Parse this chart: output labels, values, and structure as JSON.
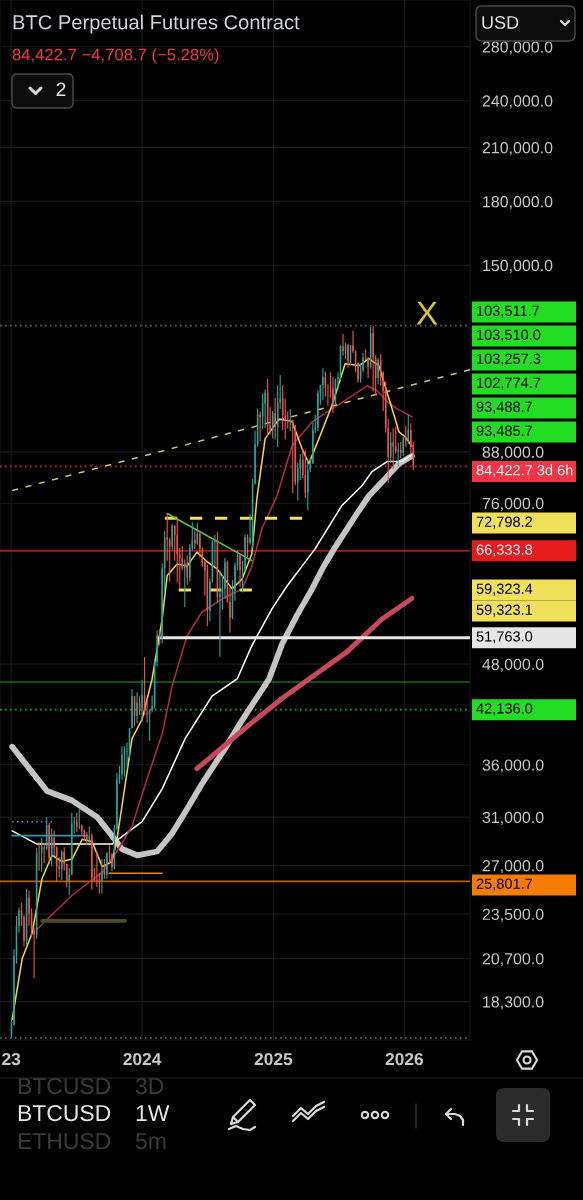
{
  "chart_data": {
    "type": "candlestick",
    "title": "BTC Perpetual Futures Contract",
    "subtitle": "84,422.7 −4,708.7 (−5.28%)",
    "x": [
      "2023-01-02",
      "2023-01-09",
      "2023-01-16",
      "2023-01-23",
      "2023-01-30",
      "2023-02-06",
      "2023-02-13",
      "2023-02-20",
      "2023-02-27",
      "2023-03-06",
      "2023-03-13",
      "2023-03-20",
      "2023-03-27",
      "2023-04-03",
      "2023-04-10",
      "2023-04-17",
      "2023-04-24",
      "2023-05-01",
      "2023-05-08",
      "2023-05-15",
      "2023-05-22",
      "2023-05-29",
      "2023-06-05",
      "2023-06-12",
      "2023-06-19",
      "2023-06-26",
      "2023-07-03",
      "2023-07-10",
      "2023-07-17",
      "2023-07-24",
      "2023-07-31",
      "2023-08-07",
      "2023-08-14",
      "2023-08-21",
      "2023-08-28",
      "2023-09-04",
      "2023-09-11",
      "2023-09-18",
      "2023-09-25",
      "2023-10-02",
      "2023-10-09",
      "2023-10-16",
      "2023-10-23",
      "2023-10-30",
      "2023-11-06",
      "2023-11-13",
      "2023-11-20",
      "2023-11-27",
      "2023-12-04",
      "2023-12-11",
      "2023-12-18",
      "2023-12-25",
      "2024-01-01",
      "2024-01-08",
      "2024-01-15",
      "2024-01-22",
      "2024-01-29",
      "2024-02-05",
      "2024-02-12",
      "2024-02-19",
      "2024-02-26",
      "2024-03-04",
      "2024-03-11",
      "2024-03-18",
      "2024-03-25",
      "2024-04-01",
      "2024-04-08",
      "2024-04-15",
      "2024-04-22",
      "2024-04-29",
      "2024-05-06",
      "2024-05-13",
      "2024-05-20",
      "2024-05-27",
      "2024-06-03",
      "2024-06-10",
      "2024-06-17",
      "2024-06-24",
      "2024-07-01",
      "2024-07-08",
      "2024-07-15",
      "2024-07-22",
      "2024-07-29",
      "2024-08-05",
      "2024-08-12",
      "2024-08-19",
      "2024-08-26",
      "2024-09-02",
      "2024-09-09",
      "2024-09-16",
      "2024-09-23",
      "2024-09-30",
      "2024-10-07",
      "2024-10-14",
      "2024-10-21",
      "2024-10-28",
      "2024-11-04",
      "2024-11-11",
      "2024-11-18",
      "2024-11-25",
      "2024-12-02",
      "2024-12-09",
      "2024-12-16",
      "2024-12-23",
      "2024-12-30",
      "2025-01-06",
      "2025-01-13",
      "2025-01-20",
      "2025-01-27",
      "2025-02-03",
      "2025-02-10",
      "2025-02-17",
      "2025-02-24",
      "2025-03-03",
      "2025-03-10",
      "2025-03-17",
      "2025-03-24",
      "2025-03-31",
      "2025-04-07",
      "2025-04-14",
      "2025-04-21",
      "2025-04-28",
      "2025-05-05",
      "2025-05-12",
      "2025-05-19",
      "2025-05-26",
      "2025-06-02",
      "2025-06-09",
      "2025-06-16",
      "2025-06-23",
      "2025-06-30",
      "2025-07-07",
      "2025-07-14",
      "2025-07-21",
      "2025-07-28",
      "2025-08-04",
      "2025-08-11",
      "2025-08-18",
      "2025-08-25",
      "2025-09-01",
      "2025-09-08",
      "2025-09-15",
      "2025-09-22",
      "2025-09-29",
      "2025-10-06",
      "2025-10-13",
      "2025-10-20",
      "2025-10-27",
      "2025-11-03",
      "2025-11-10",
      "2025-11-17",
      "2025-11-24",
      "2025-12-01",
      "2025-12-08",
      "2025-12-15",
      "2025-12-22",
      "2025-12-29",
      "2026-01-05",
      "2026-01-12",
      "2026-01-19",
      "2026-01-26"
    ],
    "ohlc": [
      [
        16600,
        17400,
        16500,
        17100
      ],
      [
        17100,
        21250,
        17100,
        20870
      ],
      [
        20870,
        23370,
        20400,
        22700
      ],
      [
        22700,
        23950,
        22300,
        23750
      ],
      [
        23750,
        24250,
        22700,
        23320
      ],
      [
        23320,
        23420,
        21420,
        21780
      ],
      [
        21780,
        25250,
        21530,
        24630
      ],
      [
        24630,
        25130,
        22730,
        23550
      ],
      [
        23550,
        23880,
        21980,
        22430
      ],
      [
        22430,
        22600,
        19570,
        22150
      ],
      [
        22150,
        28400,
        21900,
        28000
      ],
      [
        28000,
        28900,
        26600,
        27990
      ],
      [
        27990,
        29200,
        26500,
        28450
      ],
      [
        28450,
        28800,
        27200,
        28330
      ],
      [
        28330,
        31000,
        28200,
        30300
      ],
      [
        30300,
        30500,
        27130,
        27600
      ],
      [
        27600,
        30000,
        26950,
        29230
      ],
      [
        29230,
        29840,
        27700,
        28430
      ],
      [
        28430,
        28500,
        25800,
        26900
      ],
      [
        26900,
        27650,
        26100,
        26750
      ],
      [
        26750,
        28200,
        25900,
        28070
      ],
      [
        28070,
        28450,
        26600,
        27100
      ],
      [
        27100,
        27150,
        25350,
        25850
      ],
      [
        25850,
        26800,
        24800,
        26340
      ],
      [
        26340,
        31400,
        26250,
        30470
      ],
      [
        30470,
        31000,
        29600,
        30590
      ],
      [
        30590,
        31400,
        29700,
        30170
      ],
      [
        30170,
        31800,
        29950,
        30230
      ],
      [
        30230,
        30350,
        29500,
        29800
      ],
      [
        29800,
        29950,
        29000,
        29300
      ],
      [
        29300,
        29700,
        28600,
        29060
      ],
      [
        29060,
        30200,
        28750,
        29400
      ],
      [
        29400,
        29600,
        25200,
        26100
      ],
      [
        26100,
        26800,
        25800,
        26000
      ],
      [
        26000,
        28150,
        25400,
        25950
      ],
      [
        25950,
        26450,
        24900,
        25840
      ],
      [
        25840,
        27500,
        24920,
        26550
      ],
      [
        26550,
        27480,
        26000,
        26300
      ],
      [
        26300,
        28050,
        26000,
        27980
      ],
      [
        27980,
        28600,
        27200,
        27930
      ],
      [
        27930,
        27950,
        26550,
        26860
      ],
      [
        26860,
        30350,
        26700,
        29990
      ],
      [
        29990,
        35200,
        29900,
        34520
      ],
      [
        34520,
        35900,
        34100,
        35050
      ],
      [
        35050,
        37970,
        34500,
        37060
      ],
      [
        37060,
        37950,
        34800,
        37380
      ],
      [
        37380,
        38400,
        35650,
        37450
      ],
      [
        37450,
        40000,
        36700,
        39970
      ],
      [
        39970,
        44700,
        39970,
        43800
      ],
      [
        43800,
        43800,
        40200,
        41370
      ],
      [
        41370,
        44300,
        40550,
        43020
      ],
      [
        43020,
        43800,
        41500,
        42280
      ],
      [
        42280,
        45900,
        40750,
        43940
      ],
      [
        43940,
        48970,
        41500,
        41730
      ],
      [
        41730,
        43570,
        40600,
        41580
      ],
      [
        41580,
        42200,
        38550,
        42120
      ],
      [
        42120,
        43880,
        41800,
        42580
      ],
      [
        42580,
        48600,
        42260,
        48300
      ],
      [
        48300,
        52820,
        47700,
        52130
      ],
      [
        52130,
        52980,
        50600,
        51730
      ],
      [
        51730,
        64000,
        50900,
        63110
      ],
      [
        63110,
        70170,
        59000,
        68970
      ],
      [
        68970,
        73800,
        64500,
        68400
      ],
      [
        68400,
        68900,
        60770,
        67230
      ],
      [
        67230,
        71650,
        66400,
        71300
      ],
      [
        71300,
        71300,
        64500,
        69360
      ],
      [
        69360,
        72800,
        60660,
        65660
      ],
      [
        65660,
        66870,
        59600,
        64950
      ],
      [
        64950,
        67250,
        62800,
        63120
      ],
      [
        63120,
        64750,
        56500,
        64030
      ],
      [
        64030,
        65500,
        60200,
        61480
      ],
      [
        61480,
        67700,
        60750,
        66940
      ],
      [
        66940,
        71950,
        66300,
        68500
      ],
      [
        68500,
        70600,
        66650,
        67760
      ],
      [
        67760,
        71950,
        67500,
        69650
      ],
      [
        69650,
        70200,
        65100,
        66640
      ],
      [
        66640,
        66950,
        63400,
        64250
      ],
      [
        64250,
        64500,
        58400,
        62680
      ],
      [
        62680,
        63750,
        53500,
        55850
      ],
      [
        55850,
        61300,
        54300,
        60800
      ],
      [
        60800,
        68350,
        60600,
        68150
      ],
      [
        68150,
        69400,
        63500,
        68250
      ],
      [
        68250,
        70000,
        57200,
        58100
      ],
      [
        58100,
        62750,
        49000,
        58700
      ],
      [
        58700,
        61800,
        56100,
        59500
      ],
      [
        59500,
        65000,
        57900,
        64200
      ],
      [
        64200,
        64500,
        57200,
        57300
      ],
      [
        57300,
        59800,
        52550,
        54850
      ],
      [
        54850,
        61000,
        54600,
        59200
      ],
      [
        59200,
        64100,
        57500,
        63600
      ],
      [
        63600,
        66500,
        62700,
        65600
      ],
      [
        65600,
        65600,
        59850,
        62800
      ],
      [
        62800,
        64500,
        58900,
        62850
      ],
      [
        62850,
        69500,
        62500,
        69000
      ],
      [
        69000,
        69500,
        65100,
        67900
      ],
      [
        67900,
        73600,
        67500,
        68750
      ],
      [
        68750,
        81500,
        66800,
        80400
      ],
      [
        80400,
        93450,
        80200,
        89850
      ],
      [
        89850,
        99600,
        89400,
        97900
      ],
      [
        97900,
        98800,
        90800,
        97200
      ],
      [
        97200,
        104000,
        94000,
        101150
      ],
      [
        101150,
        105200,
        94200,
        104300
      ],
      [
        104300,
        108350,
        92100,
        95100
      ],
      [
        95100,
        99950,
        92500,
        93700
      ],
      [
        93700,
        98900,
        91500,
        98300
      ],
      [
        98300,
        102700,
        91200,
        94500
      ],
      [
        94500,
        106400,
        89250,
        101300
      ],
      [
        101300,
        109600,
        99500,
        102600
      ],
      [
        102600,
        106450,
        93700,
        97700
      ],
      [
        97700,
        102500,
        91200,
        96500
      ],
      [
        96500,
        98800,
        94100,
        96150
      ],
      [
        96150,
        99500,
        93400,
        96250
      ],
      [
        96250,
        96500,
        78200,
        94250
      ],
      [
        94250,
        95000,
        80000,
        80700
      ],
      [
        80700,
        85300,
        76600,
        84000
      ],
      [
        84000,
        87450,
        81200,
        86050
      ],
      [
        86050,
        88750,
        81600,
        82400
      ],
      [
        82400,
        88500,
        77150,
        78350
      ],
      [
        78350,
        86100,
        74500,
        83700
      ],
      [
        83700,
        86500,
        83100,
        85150
      ],
      [
        85150,
        95750,
        85100,
        93750
      ],
      [
        93750,
        97900,
        92800,
        94300
      ],
      [
        94300,
        104950,
        93400,
        104100
      ],
      [
        104100,
        106650,
        100700,
        106450
      ],
      [
        106450,
        111950,
        102000,
        109000
      ],
      [
        109000,
        110700,
        103100,
        105700
      ],
      [
        105700,
        106800,
        100400,
        105600
      ],
      [
        105600,
        110500,
        102700,
        105500
      ],
      [
        105500,
        108900,
        98200,
        101000
      ],
      [
        101000,
        108500,
        100900,
        108350
      ],
      [
        108350,
        110500,
        105100,
        108950
      ],
      [
        108950,
        119500,
        107500,
        119100
      ],
      [
        119100,
        123200,
        115800,
        117300
      ],
      [
        117300,
        120200,
        114700,
        119400
      ],
      [
        119400,
        119800,
        111900,
        114200
      ],
      [
        114200,
        119400,
        112700,
        119300
      ],
      [
        119300,
        124450,
        116800,
        117400
      ],
      [
        117400,
        117600,
        110600,
        113500
      ],
      [
        113500,
        113600,
        107300,
        108250
      ],
      [
        108250,
        113400,
        107250,
        111150
      ],
      [
        111150,
        116800,
        110600,
        115300
      ],
      [
        115300,
        117900,
        114400,
        115250
      ],
      [
        115250,
        115350,
        108600,
        112150
      ],
      [
        112150,
        125700,
        111600,
        123500
      ],
      [
        123500,
        126200,
        104600,
        115200
      ],
      [
        115200,
        116000,
        103500,
        108700
      ],
      [
        108700,
        115000,
        106700,
        114500
      ],
      [
        114500,
        116400,
        106300,
        110500
      ],
      [
        110500,
        110800,
        98900,
        104700
      ],
      [
        104700,
        107500,
        93000,
        94200
      ],
      [
        94200,
        96700,
        80500,
        86800
      ],
      [
        86800,
        93100,
        85400,
        90400
      ],
      [
        90400,
        94150,
        83800,
        89400
      ],
      [
        89400,
        94600,
        87600,
        88200
      ],
      [
        88200,
        90300,
        84400,
        88500
      ],
      [
        88500,
        90500,
        86500,
        87800
      ],
      [
        87800,
        91800,
        86900,
        91500
      ],
      [
        91500,
        94800,
        89300,
        90800
      ],
      [
        90800,
        97900,
        90000,
        93600
      ],
      [
        93600,
        95500,
        87300,
        89131.4
      ],
      [
        89131.4,
        90500,
        83500,
        84422.7
      ]
    ],
    "series": [
      {
        "type": "line",
        "color": "#c4c4c4",
        "x": [
          "2023-01-04",
          "2023-04-11",
          "2023-06-20",
          "2023-08-29",
          "2023-10-09",
          "2023-11-06",
          "2023-12-18",
          "2024-02-12",
          "2024-03-25",
          "2024-05-05",
          "2024-06-16",
          "2024-08-19",
          "2024-10-06",
          "2024-12-20",
          "2025-01-25",
          "2025-03-08",
          "2025-04-19",
          "2025-05-19",
          "2025-06-22",
          "2025-08-22",
          "2025-09-24",
          "2025-11-16",
          "2025-12-17",
          "2026-01-22"
        ],
        "values": [
          37900,
          33400,
          32500,
          31000,
          29400,
          28300,
          27800,
          28100,
          29600,
          31700,
          34100,
          37700,
          40900,
          46000,
          50800,
          55200,
          59500,
          63200,
          67000,
          73800,
          77600,
          82200,
          85100,
          87000
        ]
      },
      {
        "type": "line",
        "color": "#c8485a",
        "x": [
          "2024-06-02",
          "2024-11-02",
          "2025-01-25",
          "2025-04-19",
          "2025-07-25",
          "2025-10-31",
          "2026-01-22"
        ],
        "values": [
          35600,
          40600,
          43500,
          46300,
          49700,
          54600,
          57900
        ]
      },
      {
        "type": "line",
        "color": "#ffffff",
        "x": [
          "2023-01-04",
          "2023-03-14",
          "2023-06-20",
          "2023-10-09",
          "2024-01-01",
          "2024-02-26",
          "2024-04-30",
          "2024-07-14",
          "2024-09-22",
          "2024-11-02",
          "2024-12-28",
          "2025-02-08",
          "2025-03-22",
          "2025-04-27",
          "2025-07-11",
          "2025-09-05",
          "2025-10-03",
          "2025-11-14",
          "2025-12-25",
          "2026-01-22"
        ],
        "values": [
          29800,
          28700,
          28700,
          28700,
          30600,
          33600,
          38800,
          43800,
          46000,
          50600,
          56200,
          60000,
          63500,
          66700,
          75500,
          79900,
          83200,
          85600,
          85600,
          87300
        ]
      },
      {
        "type": "line",
        "color": "#b02a45",
        "x": [
          "2023-03-14",
          "2023-06-20",
          "2023-09-12",
          "2023-10-23",
          "2023-12-04",
          "2024-01-15",
          "2024-02-26",
          "2024-03-25",
          "2024-05-05",
          "2024-06-16",
          "2024-08-11",
          "2024-10-06",
          "2024-11-02",
          "2024-11-30",
          "2025-01-11",
          "2025-02-22",
          "2025-04-19",
          "2025-06-13",
          "2025-08-08",
          "2025-09-19",
          "2025-10-17",
          "2025-11-14",
          "2025-12-12",
          "2026-01-22"
        ],
        "values": [
          22500,
          24800,
          26500,
          28100,
          30200,
          34600,
          39300,
          45100,
          52000,
          55700,
          57800,
          59500,
          63500,
          70700,
          77600,
          89500,
          95900,
          99500,
          103300,
          106300,
          104800,
          101600,
          99500,
          97300
        ]
      },
      {
        "type": "line",
        "color": "#f2d648",
        "x": [
          "2023-01-04",
          "2023-02-01",
          "2023-03-01",
          "2023-03-28",
          "2023-04-25",
          "2023-05-23",
          "2023-06-20",
          "2023-07-18",
          "2023-08-15",
          "2023-09-12",
          "2023-10-09",
          "2023-10-23",
          "2023-11-06",
          "2023-12-04",
          "2024-01-01",
          "2024-01-29",
          "2024-02-26",
          "2024-03-11",
          "2024-04-08",
          "2024-05-05",
          "2024-06-02",
          "2024-06-30",
          "2024-07-28",
          "2024-09-08",
          "2024-10-06",
          "2024-11-02",
          "2024-11-16",
          "2024-12-09",
          "2025-01-17",
          "2025-02-22",
          "2025-03-22",
          "2025-04-10",
          "2025-05-08",
          "2025-06-13",
          "2025-07-20",
          "2025-08-28",
          "2025-09-24",
          "2025-10-22",
          "2025-11-08",
          "2025-11-28",
          "2025-12-17",
          "2026-01-03",
          "2026-01-22"
        ],
        "values": [
          17400,
          20700,
          22300,
          26000,
          27800,
          27300,
          27500,
          29100,
          28900,
          26900,
          27300,
          29100,
          32000,
          38800,
          41000,
          46000,
          54600,
          61800,
          63900,
          63500,
          66100,
          64300,
          63000,
          59500,
          61200,
          65800,
          77000,
          91400,
          96700,
          96000,
          88800,
          85100,
          91400,
          100400,
          113200,
          112600,
          114900,
          112600,
          106300,
          99500,
          93200,
          91900,
          89500
        ]
      },
      {
        "type": "line",
        "color": "#c9c27e",
        "line_style": "dashed",
        "x": [
          "2023-01-04",
          "2026-07-03"
        ],
        "values": [
          78800,
          111300
        ]
      },
      {
        "type": "line",
        "color": "#e6e6e6",
        "x": [
          "2024-02-17",
          "2026-07-03"
        ],
        "values": [
          51763.0,
          51763.0
        ],
        "value_labels": [
          null,
          "51,763.0"
        ]
      },
      {
        "type": "line",
        "color": "#f0e05a",
        "line_style": "dashed",
        "x": [
          "2024-03-05",
          "2025-03-22"
        ],
        "values": [
          72798.2,
          72798.2
        ]
      },
      {
        "type": "line",
        "color": "#f0e05a",
        "line_style": "dashed",
        "x": [
          "2024-04-12",
          "2024-11-02"
        ],
        "values": [
          59323.4,
          59323.4
        ]
      },
      {
        "type": "line",
        "color": "#5cc93a",
        "x": [
          "2024-03-11",
          "2024-11-02"
        ],
        "values": [
          73800,
          64500
        ]
      },
      {
        "type": "line",
        "color": "#4d4a26",
        "x": [
          "2023-03-28",
          "2023-11-15"
        ],
        "values": [
          23050,
          23050
        ]
      },
      {
        "type": "line",
        "color": "#e08a1e",
        "x": [
          "2023-10-01",
          "2024-02-26"
        ],
        "values": [
          26400,
          26400
        ]
      },
      {
        "type": "line",
        "color": "#3b8fb5",
        "x": [
          "2023-01-04",
          "2023-08-01"
        ],
        "values": [
          29400,
          29400
        ]
      },
      {
        "type": "line",
        "color": "#5b7fe0",
        "line_style": "dotted",
        "x": [
          "2023-01-04",
          "2023-04-25"
        ],
        "values": [
          30600,
          30600
        ]
      }
    ],
    "ref_lines": [
      {
        "axis": "y",
        "value": 126200,
        "color": "#7a7a7a",
        "line_style": "dotted"
      },
      {
        "axis": "y",
        "value": 84422.7,
        "label": "84,422.7 3d 6h",
        "color": "#f23645",
        "line_style": "dotted"
      },
      {
        "axis": "y",
        "value": 66333.8,
        "label": "66,333.8",
        "color": "#e51c1c",
        "line_style": "solid"
      },
      {
        "axis": "y",
        "value": 45600,
        "color": "#1f8a2e",
        "line_style": "solid"
      },
      {
        "axis": "y",
        "value": 42136.0,
        "label": "42,136.0",
        "color": "#22dd22",
        "line_style": "dotted"
      },
      {
        "axis": "y",
        "value": 25801.7,
        "label": "25,801.7",
        "color": "#f57c00",
        "line_style": "solid"
      },
      {
        "axis": "y",
        "value": 16500,
        "color": "#7a7a7a",
        "line_style": "dotted"
      }
    ],
    "annotations": [
      "X",
      "103,511.7",
      "103,510.0",
      "103,257.3",
      "102,774.7",
      "93,488.7",
      "93,485.7",
      "72,798.2",
      "59,323.4",
      "59,323.1",
      "USD",
      "2",
      "BTCUSD",
      "3D",
      "BTCUSD",
      "1W",
      "ETHUSD",
      "5m"
    ],
    "xlim": [
      "2022-12-01",
      "2026-07-03"
    ],
    "ylim": [
      16400,
      320000
    ],
    "log": true,
    "grid": true,
    "xticks": [
      {
        "value": "2023-01-01",
        "label": "23"
      },
      {
        "value": "2024-01-01",
        "label": "2024"
      },
      {
        "value": "2025-01-01",
        "label": "2025"
      },
      {
        "value": "2026-01-01",
        "label": "2026"
      }
    ],
    "yticks": [
      {
        "value": 280000,
        "label": "280,000.0"
      },
      {
        "value": 240000,
        "label": "240,000.0"
      },
      {
        "value": 210000,
        "label": "210,000.0"
      },
      {
        "value": 180000,
        "label": "180,000.0"
      },
      {
        "value": 150000,
        "label": "150,000.0"
      },
      {
        "value": 88000,
        "label": "88,000.0"
      },
      {
        "value": 76000,
        "label": "76,000.0"
      },
      {
        "value": 48000,
        "label": "48,000.0"
      },
      {
        "value": 36000,
        "label": "36,000.0"
      },
      {
        "value": 31000,
        "label": "31,000.0"
      },
      {
        "value": 27000,
        "label": "27,000.0"
      },
      {
        "value": 23500,
        "label": "23,500.0"
      },
      {
        "value": 20700,
        "label": "20,700.0"
      },
      {
        "value": 18300,
        "label": "18,300.0"
      }
    ]
  }
}
